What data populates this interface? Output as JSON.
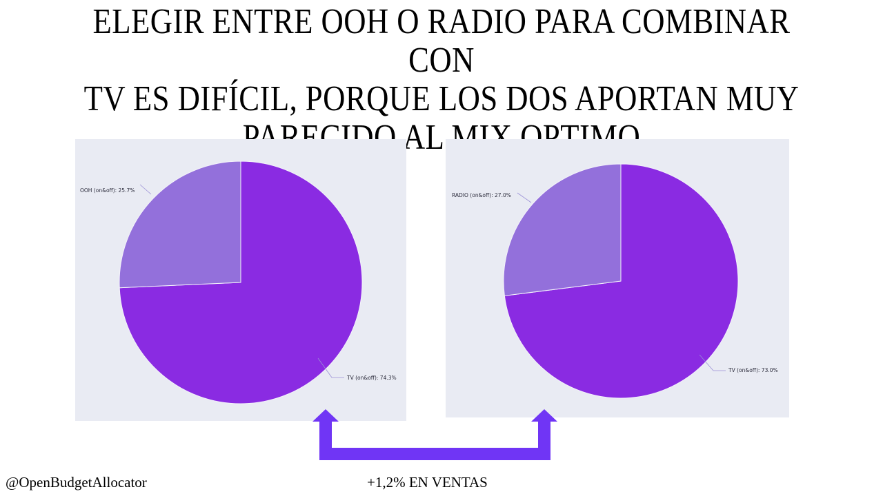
{
  "slide": {
    "title_lines": [
      "ELEGIR ENTRE OOH O RADIO PARA COMBINAR CON",
      "TV ES DIFÍCIL, PORQUE LOS DOS APORTAN MUY",
      "PARECIDO AL MIX OPTIMO"
    ],
    "handle": "@OpenBudgetAllocator",
    "result_text": "+1,2% EN VENTAS"
  },
  "colors": {
    "primary_slice": "#8a2be2",
    "secondary_slice": "#9370db",
    "panel_bg": "#e9ebf3",
    "arrow": "#7035f5"
  },
  "chart_data": [
    {
      "type": "pie",
      "categories": [
        "TV (on&off)",
        "OOH (on&off)"
      ],
      "values": [
        74.3,
        25.7
      ],
      "labels": [
        "TV (on&off): 74.3%",
        "OOH (on&off): 25.7%"
      ]
    },
    {
      "type": "pie",
      "categories": [
        "TV (on&off)",
        "RADIO (on&off)"
      ],
      "values": [
        73.0,
        27.0
      ],
      "labels": [
        "TV (on&off): 73.0%",
        "RADIO (on&off): 27.0%"
      ]
    }
  ]
}
